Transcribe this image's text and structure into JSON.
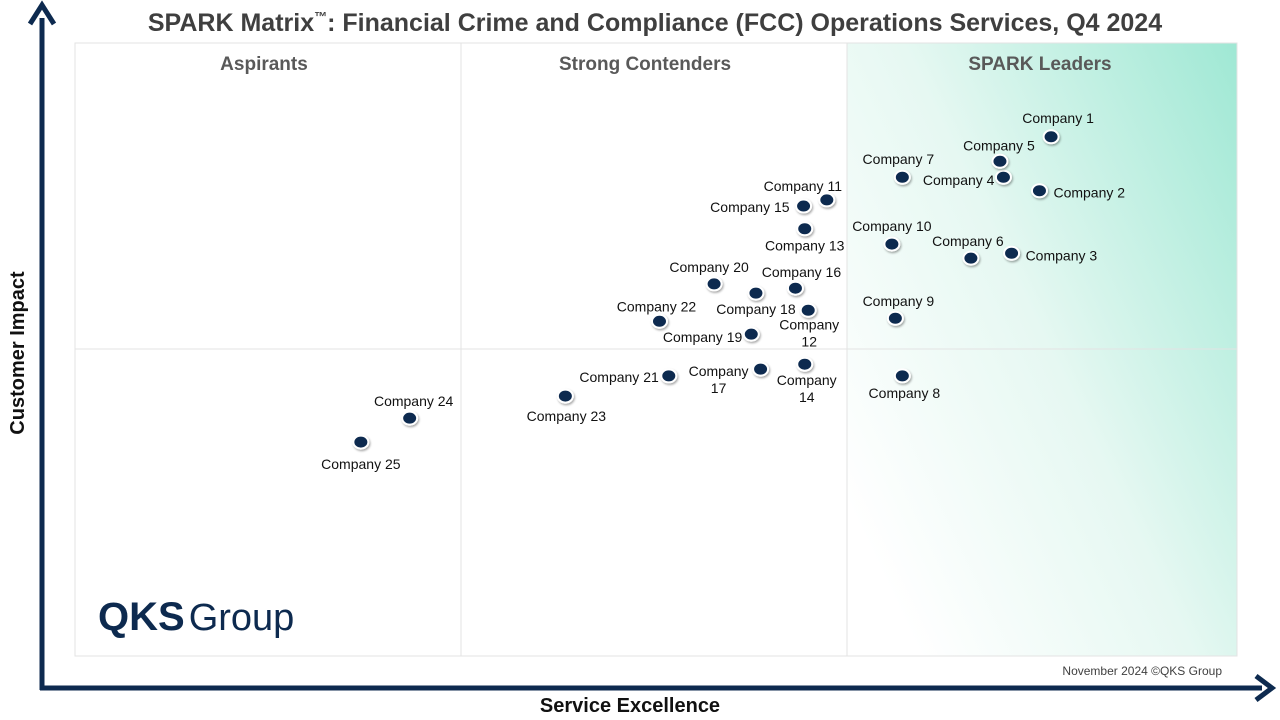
{
  "chart_data": {
    "type": "scatter",
    "title": "SPARK Matrix",
    "title_tm": "™",
    "title_rest": ": Financial Crime and Compliance (FCC) Operations Services, Q4 2024",
    "xlabel": "Service Excellence",
    "ylabel": "Customer Impact",
    "xlim": [
      0,
      10
    ],
    "ylim": [
      0,
      10
    ],
    "grid": false,
    "quadrants": [
      "Aspirants",
      "Strong Contenders",
      "SPARK Leaders"
    ],
    "colors": {
      "point": "#0d2a4f",
      "axis": "#0d2a4f",
      "leaders_gradient": "#9fe8d4"
    },
    "points": [
      {
        "name": "Company 1",
        "x": 8.4,
        "y": 8.47
      },
      {
        "name": "Company 2",
        "x": 8.3,
        "y": 7.59
      },
      {
        "name": "Company 3",
        "x": 8.06,
        "y": 6.57
      },
      {
        "name": "Company 4",
        "x": 7.99,
        "y": 7.81
      },
      {
        "name": "Company 5",
        "x": 7.96,
        "y": 8.07
      },
      {
        "name": "Company 6",
        "x": 7.71,
        "y": 6.49
      },
      {
        "name": "Company 7",
        "x": 7.12,
        "y": 7.81
      },
      {
        "name": "Company 8",
        "x": 7.12,
        "y": 4.57
      },
      {
        "name": "Company 9",
        "x": 7.06,
        "y": 5.51
      },
      {
        "name": "Company 10",
        "x": 7.03,
        "y": 6.72
      },
      {
        "name": "Company 11",
        "x": 6.47,
        "y": 7.44
      },
      {
        "name": "Company 12",
        "x": 6.31,
        "y": 5.64
      },
      {
        "name": "Company 13",
        "x": 6.28,
        "y": 6.97
      },
      {
        "name": "Company 14",
        "x": 6.28,
        "y": 4.76
      },
      {
        "name": "Company 15",
        "x": 6.27,
        "y": 7.34
      },
      {
        "name": "Company 16",
        "x": 6.2,
        "y": 6.0
      },
      {
        "name": "Company 17",
        "x": 5.9,
        "y": 4.68
      },
      {
        "name": "Company 18",
        "x": 5.86,
        "y": 5.92
      },
      {
        "name": "Company 19",
        "x": 5.82,
        "y": 5.25
      },
      {
        "name": "Company 20",
        "x": 5.5,
        "y": 6.07
      },
      {
        "name": "Company 21",
        "x": 5.11,
        "y": 4.57
      },
      {
        "name": "Company 22",
        "x": 5.03,
        "y": 5.46
      },
      {
        "name": "Company 23",
        "x": 4.22,
        "y": 4.24
      },
      {
        "name": "Company 24",
        "x": 2.88,
        "y": 3.88
      },
      {
        "name": "Company 25",
        "x": 2.46,
        "y": 3.49
      }
    ]
  },
  "logo": {
    "bold": "QKS",
    "regular": "Group"
  },
  "footer": "November 2024 ©QKS Group"
}
